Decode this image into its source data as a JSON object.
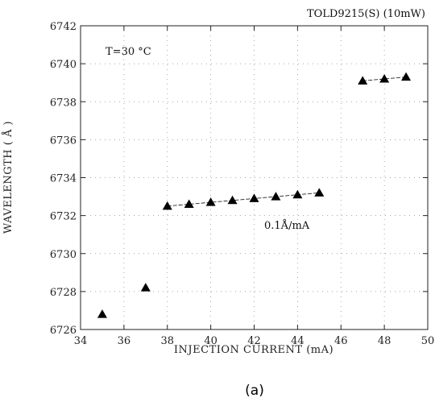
{
  "chart_data": {
    "type": "scatter",
    "title": "TOLD9215(S) (10mW)",
    "xlabel": "INJECTION CURRENT (mA)",
    "ylabel": "WAVELENGTH ( Å )",
    "xlim": [
      34,
      50
    ],
    "ylim": [
      6726,
      6742
    ],
    "x_ticks": [
      34,
      36,
      38,
      40,
      42,
      44,
      46,
      48,
      50
    ],
    "y_ticks": [
      6726,
      6728,
      6730,
      6732,
      6734,
      6736,
      6738,
      6740,
      6742
    ],
    "grid": "dotted",
    "marker": "triangle",
    "points": [
      {
        "x": 35,
        "y": 6726.8
      },
      {
        "x": 37,
        "y": 6728.2
      },
      {
        "x": 38,
        "y": 6732.5
      },
      {
        "x": 39,
        "y": 6732.6
      },
      {
        "x": 40,
        "y": 6732.7
      },
      {
        "x": 41,
        "y": 6732.8
      },
      {
        "x": 42,
        "y": 6732.9
      },
      {
        "x": 43,
        "y": 6733.0
      },
      {
        "x": 44,
        "y": 6733.1
      },
      {
        "x": 45,
        "y": 6733.2
      },
      {
        "x": 47,
        "y": 6739.1
      },
      {
        "x": 48,
        "y": 6739.2
      },
      {
        "x": 49,
        "y": 6739.3
      }
    ],
    "fit_lines": [
      {
        "x": [
          38,
          45
        ],
        "y": [
          6732.5,
          6733.2
        ]
      },
      {
        "x": [
          47,
          49
        ],
        "y": [
          6739.1,
          6739.3
        ]
      }
    ],
    "annotations": {
      "temperature": "T=30 °C",
      "slope": "0.1Å/mA"
    }
  },
  "caption": "(a)"
}
